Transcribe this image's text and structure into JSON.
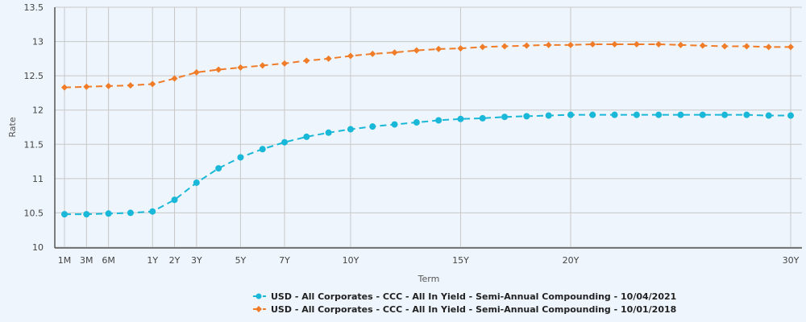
{
  "chart_data": {
    "type": "line",
    "title": "",
    "xlabel": "Term",
    "ylabel": "Rate",
    "ylim": [
      10,
      13.5
    ],
    "yticks": [
      "10",
      "10.5",
      "11",
      "11.5",
      "12",
      "12.5",
      "13",
      "13.5"
    ],
    "grid": true,
    "legend_position": "bottom",
    "x": [
      "1M",
      "3M",
      "6M",
      "9M",
      "1Y",
      "2Y",
      "3Y",
      "4Y",
      "5Y",
      "6Y",
      "7Y",
      "8Y",
      "9Y",
      "10Y",
      "11Y",
      "12Y",
      "13Y",
      "14Y",
      "15Y",
      "16Y",
      "17Y",
      "18Y",
      "19Y",
      "20Y",
      "21Y",
      "22Y",
      "23Y",
      "24Y",
      "25Y",
      "26Y",
      "27Y",
      "28Y",
      "29Y",
      "30Y"
    ],
    "xtick_labels": [
      "1M",
      "3M",
      "6M",
      "1Y",
      "2Y",
      "3Y",
      "5Y",
      "7Y",
      "10Y",
      "15Y",
      "20Y",
      "30Y"
    ],
    "series": [
      {
        "name": "USD - All Corporates - CCC - All In Yield - Semi-Annual Compounding - 10/04/2021",
        "color": "#1ab8d8",
        "marker": "circle",
        "values": [
          10.48,
          10.48,
          10.49,
          10.5,
          10.52,
          10.69,
          10.94,
          11.15,
          11.31,
          11.43,
          11.53,
          11.61,
          11.67,
          11.72,
          11.76,
          11.79,
          11.82,
          11.85,
          11.87,
          11.88,
          11.9,
          11.91,
          11.92,
          11.93,
          11.93,
          11.93,
          11.93,
          11.93,
          11.93,
          11.93,
          11.93,
          11.93,
          11.92,
          11.92
        ]
      },
      {
        "name": "USD - All Corporates - CCC - All In Yield - Semi-Annual Compounding - 10/01/2018",
        "color": "#f07c28",
        "marker": "diamond",
        "values": [
          12.33,
          12.34,
          12.35,
          12.36,
          12.38,
          12.46,
          12.55,
          12.59,
          12.62,
          12.65,
          12.68,
          12.72,
          12.75,
          12.79,
          12.82,
          12.84,
          12.87,
          12.89,
          12.9,
          12.92,
          12.93,
          12.94,
          12.95,
          12.95,
          12.96,
          12.96,
          12.96,
          12.96,
          12.95,
          12.94,
          12.93,
          12.93,
          12.92,
          12.92
        ]
      }
    ]
  }
}
